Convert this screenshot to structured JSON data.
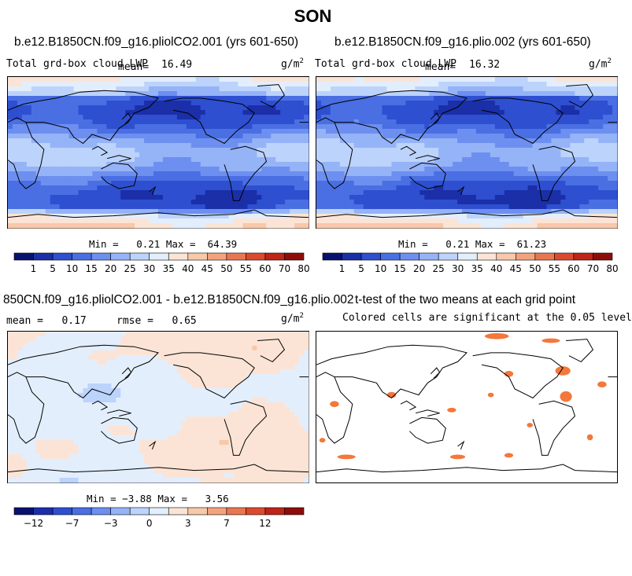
{
  "page_title": "SON",
  "panels": [
    {
      "title": "b.e12.B1850CN.f09_g16.pliolCO2.001 (yrs 601-650)",
      "left_label": "Total grd-box cloud LWP",
      "mean_label": "mean=",
      "mean_value": "16.49",
      "units": "g/m",
      "units_exp": "2",
      "min_label": "Min =",
      "min_value": "0.21",
      "max_label": "Max =",
      "max_value": "64.39"
    },
    {
      "title": "b.e12.B1850CN.f09_g16.plio.002 (yrs 601-650)",
      "left_label": "Total grd-box cloud LWP",
      "mean_label": "mean=",
      "mean_value": "16.32",
      "units": "g/m",
      "units_exp": "2",
      "min_label": "Min =",
      "min_value": "0.21",
      "max_label": "Max =",
      "max_value": "61.23"
    },
    {
      "title": "850CN.f09_g16.pliolCO2.001 - b.e12.B1850CN.f09_g16.plio.002",
      "mean_label": "mean =",
      "mean_value": "0.17",
      "rmse_label": "rmse =",
      "rmse_value": "0.65",
      "units": "g/m",
      "units_exp": "2",
      "min_label": "Min =",
      "min_value": "−3.88",
      "max_label": "Max =",
      "max_value": "3.56"
    },
    {
      "title": "t-test of the two means at each grid point",
      "subtitle": "Colored cells are significant at the 0.05 level"
    }
  ],
  "chart_data": [
    {
      "type": "heatmap",
      "title": "b.e12.B1850CN.f09_g16.pliolCO2.001 (yrs 601-650)",
      "variable": "Total grd-box cloud LWP",
      "units": "g/m2",
      "mean": 16.49,
      "min": 0.21,
      "max": 64.39,
      "levels": [
        "1",
        "5",
        "10",
        "15",
        "20",
        "25",
        "30",
        "35",
        "40",
        "45",
        "50",
        "55",
        "60",
        "70",
        "80"
      ]
    },
    {
      "type": "heatmap",
      "title": "b.e12.B1850CN.f09_g16.plio.002 (yrs 601-650)",
      "variable": "Total grd-box cloud LWP",
      "units": "g/m2",
      "mean": 16.32,
      "min": 0.21,
      "max": 61.23,
      "levels": [
        "1",
        "5",
        "10",
        "15",
        "20",
        "25",
        "30",
        "35",
        "40",
        "45",
        "50",
        "55",
        "60",
        "70",
        "80"
      ]
    },
    {
      "type": "heatmap",
      "title": "850CN.f09_g16.pliolCO2.001 - b.e12.B1850CN.f09_g16.plio.002",
      "units": "g/m2",
      "mean": 0.17,
      "rmse": 0.65,
      "min": -3.88,
      "max": 3.56,
      "levels": [
        "−12",
        "−7",
        "−3",
        "0",
        "3",
        "7",
        "12"
      ]
    },
    {
      "type": "heatmap",
      "title": "t-test of the two means at each grid point",
      "subtitle": "Colored cells are significant at the 0.05 level"
    }
  ],
  "colorbar_colors": [
    "#08126e",
    "#1a2fa8",
    "#2e4fd0",
    "#4a6fe3",
    "#6d8ff0",
    "#95b3f7",
    "#bcd3fb",
    "#e3eefc",
    "#fbe4d6",
    "#f8c8aa",
    "#f3a37c",
    "#ea7650",
    "#dc4a2e",
    "#bf2418",
    "#8e0d0b"
  ],
  "diff_colors": [
    "#08126e",
    "#1a2fa8",
    "#2e4fd0",
    "#4a6fe3",
    "#6d8ff0",
    "#95b3f7",
    "#bcd3fb",
    "#e3eefc",
    "#fbe4d6",
    "#f8c8aa",
    "#f3a37c",
    "#ea7650",
    "#dc4a2e",
    "#bf2418",
    "#8e0d0b"
  ],
  "significance_color": "#f4773b"
}
